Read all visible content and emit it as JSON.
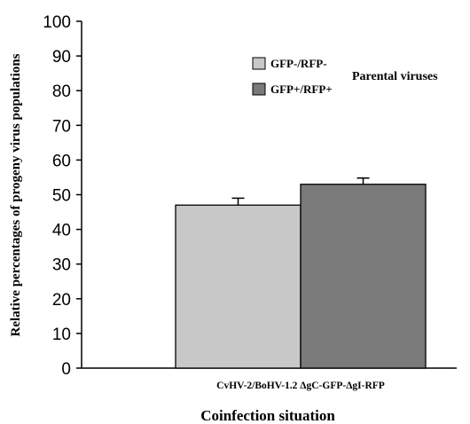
{
  "chart_data": {
    "type": "bar",
    "categories": [
      "CvHV-2/BoHV-1.2 ΔgC-GFP-ΔgI-RFP"
    ],
    "series": [
      {
        "name": "GFP-/RFP-",
        "values": [
          47
        ],
        "error": [
          2
        ],
        "color": "#c8c8c8"
      },
      {
        "name": "GFP+/RFP+",
        "values": [
          53
        ],
        "error": [
          1.8
        ],
        "color": "#7a7a7a"
      }
    ],
    "title": "",
    "xlabel": "Coinfection situation",
    "ylabel": "Relative percentages of progeny virus populations",
    "ylim": [
      0,
      100
    ],
    "yticks": [
      0,
      10,
      20,
      30,
      40,
      50,
      60,
      70,
      80,
      90,
      100
    ],
    "legend_title": "Parental viruses",
    "legend_position": "top-right",
    "grid": false
  }
}
